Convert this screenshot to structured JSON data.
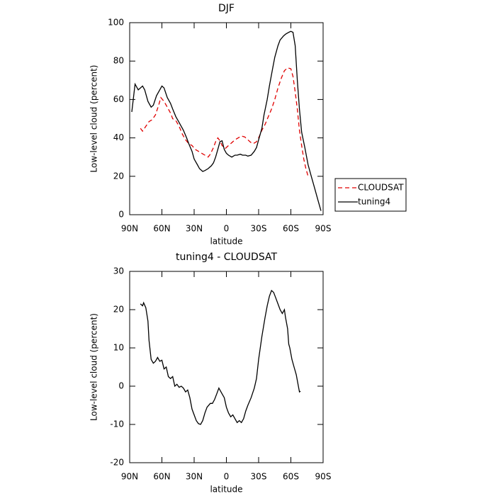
{
  "chart_data": [
    {
      "type": "line",
      "title": "DJF",
      "x_label": "latitude",
      "y_label": "Low-level cloud (percent)",
      "xlim": [
        90,
        -90
      ],
      "ylim": [
        0,
        100
      ],
      "xticks": [
        {
          "value": 90,
          "label": "90N"
        },
        {
          "value": 60,
          "label": "60N"
        },
        {
          "value": 30,
          "label": "30N"
        },
        0,
        {
          "value": -30,
          "label": "30S"
        },
        {
          "value": -60,
          "label": "60S"
        },
        {
          "value": -90,
          "label": "90S"
        }
      ],
      "yticks": [
        0,
        20,
        40,
        60,
        80,
        100
      ],
      "legend": "right",
      "series": [
        {
          "name": "CLOUDSAT",
          "color": "#e00000",
          "dash": "dashed",
          "x": [
            80,
            78,
            75,
            72,
            69,
            66,
            63,
            61,
            58,
            55,
            52,
            50,
            47,
            44,
            41,
            38,
            35,
            32,
            29,
            26,
            23,
            20,
            17,
            15,
            12,
            10,
            8,
            6,
            4,
            1,
            -2,
            -5,
            -8,
            -11,
            -14,
            -17,
            -20,
            -23,
            -25,
            -28,
            -30,
            -33,
            -36,
            -39,
            -42,
            -45,
            -48,
            -51,
            -54,
            -57,
            -60,
            -62,
            -64,
            -66,
            -68,
            -70,
            -72,
            -74,
            -76
          ],
          "values": [
            45,
            43.5,
            46,
            48.5,
            49.5,
            52,
            57,
            61,
            59,
            56,
            53,
            50,
            49,
            46,
            42,
            39,
            37,
            36,
            34,
            33,
            32,
            31,
            30,
            31.5,
            35,
            38,
            40,
            38.5,
            36,
            34.5,
            36,
            37.5,
            39,
            40,
            41,
            40.5,
            39,
            37.5,
            37,
            38,
            40,
            44,
            47,
            51,
            55,
            60,
            66,
            71,
            75,
            76.5,
            76,
            72,
            64,
            55,
            44,
            36,
            29,
            24,
            20
          ]
        },
        {
          "name": "tuning4",
          "color": "#000000",
          "dash": "solid",
          "x": [
            88,
            85,
            82,
            80,
            78,
            76,
            73,
            70,
            68,
            65,
            62,
            60,
            58,
            55,
            52,
            50,
            47,
            45,
            42,
            40,
            37,
            35,
            32,
            30,
            27,
            25,
            22,
            20,
            17,
            14,
            12,
            10,
            8,
            6,
            4,
            2,
            0,
            -2,
            -5,
            -8,
            -10,
            -13,
            -15,
            -18,
            -20,
            -23,
            -26,
            -28,
            -30,
            -33,
            -35,
            -38,
            -40,
            -43,
            -45,
            -48,
            -50,
            -53,
            -55,
            -58,
            -60,
            -62,
            -64,
            -66,
            -68,
            -70,
            -73,
            -76,
            -79,
            -82,
            -85,
            -88
          ],
          "values": [
            53.5,
            68,
            65,
            66,
            67,
            65,
            59,
            56,
            57,
            62,
            65,
            67,
            66,
            61,
            58,
            55,
            51,
            49,
            46,
            44,
            40,
            37,
            33,
            29,
            26,
            24,
            22.5,
            23,
            24,
            25.5,
            27,
            30,
            34,
            38,
            38.5,
            34,
            32,
            31,
            30,
            31,
            31,
            31.5,
            31,
            31,
            30.5,
            31,
            33,
            35,
            39,
            45,
            52,
            60,
            67,
            76,
            82,
            88,
            91,
            93,
            94,
            95,
            95.5,
            95,
            88,
            70,
            55,
            43,
            35,
            26,
            20,
            14,
            8,
            2
          ]
        }
      ]
    },
    {
      "type": "line",
      "title": "tuning4 - CLOUDSAT",
      "x_label": "latitude",
      "y_label": "Low-level cloud (percent)",
      "xlim": [
        90,
        -90
      ],
      "ylim": [
        -20,
        30
      ],
      "xticks": [
        {
          "value": 90,
          "label": "90N"
        },
        {
          "value": 60,
          "label": "60N"
        },
        {
          "value": 30,
          "label": "30N"
        },
        0,
        {
          "value": -30,
          "label": "30S"
        },
        {
          "value": -60,
          "label": "60S"
        },
        {
          "value": -90,
          "label": "90S"
        }
      ],
      "yticks": [
        -20,
        -10,
        0,
        10,
        20,
        30
      ],
      "series": [
        {
          "color": "#000000",
          "dash": "solid",
          "x": [
            80,
            78,
            77,
            75,
            73,
            72,
            70,
            68,
            66,
            64,
            62,
            60,
            58,
            56,
            54,
            52,
            50,
            48,
            46,
            44,
            42,
            40,
            38,
            36,
            34,
            32,
            30,
            28,
            26,
            24,
            22,
            20,
            18,
            15,
            13,
            11,
            9,
            7,
            6,
            4,
            2,
            0,
            -2,
            -4,
            -6,
            -8,
            -10,
            -12,
            -14,
            -16,
            -18,
            -20,
            -23,
            -26,
            -28,
            -30,
            -33,
            -36,
            -38,
            -40,
            -42,
            -44,
            -46,
            -48,
            -50,
            -52,
            -54,
            -55,
            -57,
            -58,
            -59,
            -61,
            -63,
            -65,
            -67,
            -68,
            -69
          ],
          "values": [
            21.5,
            21,
            21.8,
            20.5,
            17,
            12,
            7,
            6,
            6.5,
            7.5,
            6.5,
            6.8,
            4.5,
            5,
            2.5,
            2,
            2.5,
            0,
            0.5,
            -0.3,
            0,
            -0.5,
            -1.5,
            -1,
            -3,
            -6,
            -7.5,
            -9,
            -9.8,
            -10,
            -9,
            -7,
            -5.5,
            -4.5,
            -4.5,
            -3.5,
            -2,
            -0.5,
            -1,
            -2,
            -3,
            -5.5,
            -7,
            -8,
            -7.5,
            -8.5,
            -9.5,
            -9,
            -9.5,
            -8.5,
            -6.5,
            -5,
            -3,
            -0.5,
            2,
            7,
            13,
            18,
            21,
            23.5,
            25,
            24.5,
            23,
            21.5,
            20,
            19,
            20,
            18,
            15,
            11,
            10,
            7,
            5,
            3,
            0,
            -1.5,
            -1.3
          ]
        }
      ]
    }
  ]
}
